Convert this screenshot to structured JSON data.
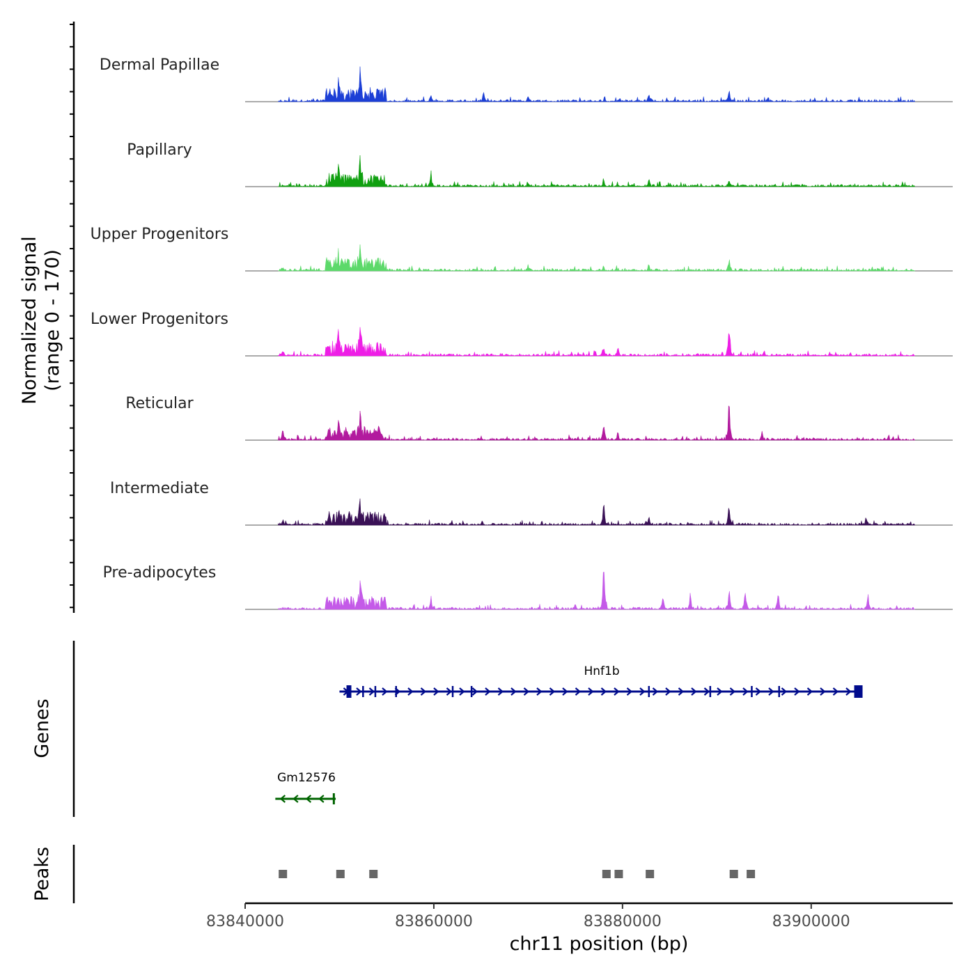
{
  "chart_data": {
    "type": "area",
    "chromosome": "chr11",
    "xlabel": "chr11 position (bp)",
    "ylabel": "Normalized signal",
    "ylabel_range": "(range 0 - 170)",
    "ylim": [
      0,
      170
    ],
    "xlim": [
      83840000,
      83915000
    ],
    "x_ticks": [
      83840000,
      83860000,
      83880000,
      83900000
    ],
    "x_tick_labels": [
      "83840000",
      "83860000",
      "83880000",
      "83900000"
    ],
    "signal_start": 83843500,
    "signal_end": 83911000,
    "series": [
      {
        "name": "Dermal Papillae",
        "color": "#1c3fd6",
        "peaks": [
          [
            83852200,
            90
          ],
          [
            83849900,
            45
          ],
          [
            83865300,
            25
          ],
          [
            83882800,
            28
          ],
          [
            83891300,
            38
          ],
          [
            83859700,
            20
          ],
          [
            83870000,
            18
          ]
        ]
      },
      {
        "name": "Papillary",
        "color": "#10a010",
        "peaks": [
          [
            83852200,
            70
          ],
          [
            83849900,
            40
          ],
          [
            83859700,
            42
          ],
          [
            83882800,
            25
          ],
          [
            83891300,
            22
          ],
          [
            83878000,
            18
          ],
          [
            83870000,
            15
          ]
        ]
      },
      {
        "name": "Upper Progenitors",
        "color": "#5cd96a",
        "peaks": [
          [
            83852200,
            64
          ],
          [
            83849900,
            30
          ],
          [
            83891300,
            38
          ],
          [
            83844000,
            15
          ],
          [
            83870000,
            20
          ],
          [
            83878000,
            12
          ],
          [
            83882800,
            14
          ]
        ]
      },
      {
        "name": "Lower Progenitors",
        "color": "#ee1ee6",
        "peaks": [
          [
            83891300,
            120
          ],
          [
            83852200,
            90
          ],
          [
            83849900,
            55
          ],
          [
            83878000,
            30
          ],
          [
            83879500,
            25
          ],
          [
            83844000,
            18
          ],
          [
            83895000,
            15
          ]
        ]
      },
      {
        "name": "Reticular",
        "color": "#b21a9e",
        "peaks": [
          [
            83891300,
            170
          ],
          [
            83852200,
            105
          ],
          [
            83878000,
            62
          ],
          [
            83879500,
            30
          ],
          [
            83844000,
            35
          ],
          [
            83894800,
            28
          ],
          [
            83849900,
            50
          ]
        ]
      },
      {
        "name": "Intermediate",
        "color": "#3a1156",
        "peaks": [
          [
            83878000,
            90
          ],
          [
            83891300,
            70
          ],
          [
            83852200,
            55
          ],
          [
            83882800,
            30
          ],
          [
            83844000,
            22
          ],
          [
            83905800,
            22
          ],
          [
            83849900,
            35
          ]
        ]
      },
      {
        "name": "Pre-adipocytes",
        "color": "#c45ae8",
        "peaks": [
          [
            83878000,
            190
          ],
          [
            83852200,
            105
          ],
          [
            83891300,
            65
          ],
          [
            83859700,
            45
          ],
          [
            83896500,
            55
          ],
          [
            83906000,
            55
          ],
          [
            83887200,
            48
          ],
          [
            83884300,
            50
          ],
          [
            83893000,
            60
          ]
        ]
      }
    ],
    "genes": [
      {
        "name": "Hnf1b",
        "start": 83850000,
        "end": 83905200,
        "strand": "+",
        "color": "#000b8c",
        "exons": [
          83851000,
          83852500,
          83853800,
          83856000,
          83862000,
          83864000,
          83882800,
          83889300,
          83893700,
          83896600,
          83905000
        ]
      },
      {
        "name": "Gm12576",
        "start": 83843200,
        "end": 83849600,
        "strand": "-",
        "color": "#006400",
        "exons": [
          83849400
        ]
      }
    ],
    "peaks_track": {
      "label": "Peaks",
      "color": "#666666",
      "positions": [
        83844000,
        83850100,
        83853600,
        83878300,
        83879600,
        83882900,
        83891800,
        83893600
      ]
    },
    "genes_track_label": "Genes"
  }
}
